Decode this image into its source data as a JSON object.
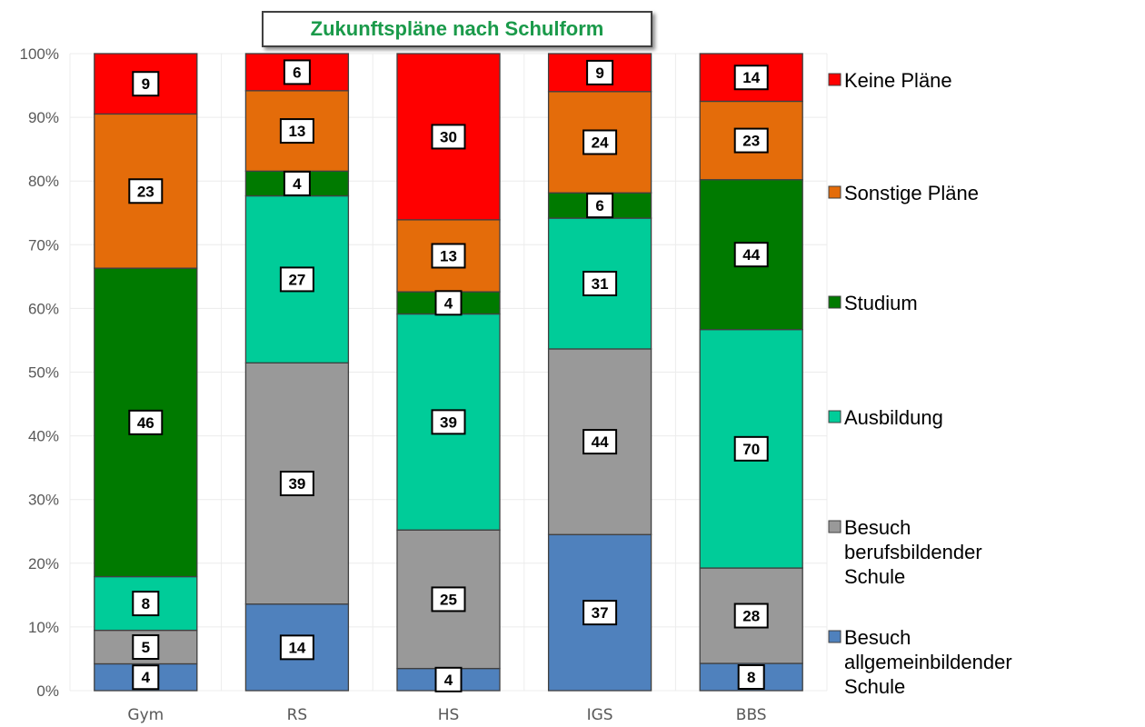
{
  "chart_data": {
    "type": "bar",
    "stacked": true,
    "normalized": true,
    "title": "Zukunftspläne nach Schulform",
    "title_color": "#1a9a4a",
    "categories": [
      "Gym",
      "RS",
      "HS",
      "IGS",
      "BBS"
    ],
    "y_ticks": [
      "0%",
      "10%",
      "20%",
      "30%",
      "40%",
      "50%",
      "60%",
      "70%",
      "80%",
      "90%",
      "100%"
    ],
    "ylim": [
      0,
      1
    ],
    "grid": true,
    "legend_position": "right",
    "series": [
      {
        "name": "Besuch allgemeinbildender Schule",
        "color": "#4f81bd",
        "values": [
          4,
          14,
          4,
          37,
          8
        ]
      },
      {
        "name": "Besuch berufsbildender Schule",
        "color": "#999999",
        "values": [
          5,
          39,
          25,
          44,
          28
        ]
      },
      {
        "name": "Ausbildung",
        "color": "#00cc99",
        "values": [
          8,
          27,
          39,
          31,
          70
        ]
      },
      {
        "name": "Studium",
        "color": "#007a00",
        "values": [
          46,
          4,
          4,
          6,
          44
        ]
      },
      {
        "name": "Sonstige Pläne",
        "color": "#e46c0a",
        "values": [
          23,
          13,
          13,
          24,
          23
        ]
      },
      {
        "name": "Keine Pläne",
        "color": "#ff0000",
        "values": [
          9,
          6,
          30,
          9,
          14
        ]
      }
    ]
  }
}
